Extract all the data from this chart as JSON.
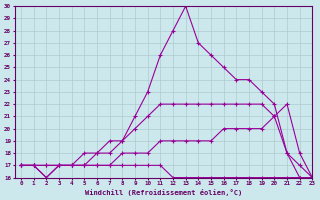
{
  "xlabel": "Windchill (Refroidissement éolien,°C)",
  "background_color": "#cce8ec",
  "line_color": "#990099",
  "grid_color": "#aacccc",
  "xmin": -0.5,
  "xmax": 23,
  "ymin": 16,
  "ymax": 30,
  "x_ticks": [
    0,
    1,
    2,
    3,
    4,
    5,
    6,
    7,
    8,
    9,
    10,
    11,
    12,
    13,
    14,
    15,
    16,
    17,
    18,
    19,
    20,
    21,
    22,
    23
  ],
  "y_ticks": [
    16,
    17,
    18,
    19,
    20,
    21,
    22,
    23,
    24,
    25,
    26,
    27,
    28,
    29,
    30
  ],
  "series": [
    {
      "x": [
        0,
        1,
        2,
        3,
        4,
        5,
        6,
        7,
        8,
        9,
        10,
        11,
        12,
        13,
        14,
        15,
        16,
        17,
        18,
        19,
        20,
        21,
        22,
        23
      ],
      "y": [
        17,
        17,
        16,
        17,
        17,
        17,
        18,
        18,
        19,
        21,
        23,
        26,
        28,
        30,
        27,
        26,
        25,
        24,
        24,
        23,
        22,
        18,
        16,
        16
      ]
    },
    {
      "x": [
        0,
        1,
        2,
        3,
        4,
        5,
        6,
        7,
        8,
        9,
        10,
        11,
        12,
        13,
        14,
        15,
        16,
        17,
        18,
        19,
        20,
        21,
        22,
        23
      ],
      "y": [
        17,
        17,
        16,
        17,
        17,
        18,
        18,
        19,
        19,
        20,
        21,
        22,
        22,
        22,
        22,
        22,
        22,
        22,
        22,
        22,
        21,
        22,
        18,
        16
      ]
    },
    {
      "x": [
        0,
        1,
        2,
        3,
        4,
        5,
        6,
        7,
        8,
        9,
        10,
        11,
        12,
        13,
        14,
        15,
        16,
        17,
        18,
        19,
        20,
        21,
        22,
        23
      ],
      "y": [
        17,
        17,
        17,
        17,
        17,
        17,
        17,
        17,
        18,
        18,
        18,
        19,
        19,
        19,
        19,
        19,
        20,
        20,
        20,
        20,
        21,
        18,
        17,
        16
      ]
    },
    {
      "x": [
        0,
        1,
        2,
        3,
        4,
        5,
        6,
        7,
        8,
        9,
        10,
        11,
        12,
        13,
        14,
        15,
        16,
        17,
        18,
        19,
        20,
        21,
        22,
        23
      ],
      "y": [
        17,
        17,
        17,
        17,
        17,
        17,
        17,
        17,
        17,
        17,
        17,
        17,
        16,
        16,
        16,
        16,
        16,
        16,
        16,
        16,
        16,
        16,
        16,
        16
      ]
    }
  ]
}
